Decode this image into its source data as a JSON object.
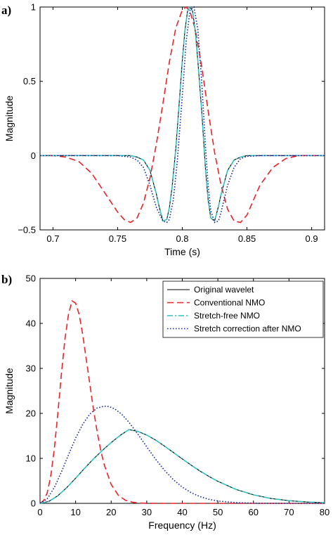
{
  "chart_data": [
    {
      "panel_label": "a)",
      "type": "line",
      "xlabel": "Time (s)",
      "ylabel": "Magnitude",
      "xlim": [
        0.69,
        0.91
      ],
      "ylim": [
        -0.5,
        1
      ],
      "xticks": [
        0.7,
        0.75,
        0.8,
        0.85,
        0.9
      ],
      "xtick_labels": [
        "0.7",
        "0.75",
        "0.8",
        "0.85",
        "0.9"
      ],
      "yticks": [
        -0.5,
        0,
        0.5,
        1
      ],
      "ytick_labels": [
        "−0.5",
        "0",
        "0.5",
        "1"
      ],
      "grid": false,
      "series": [
        {
          "name": "Original wavelet",
          "color": "#000000",
          "dash": "solid",
          "x": [
            0.69,
            0.7,
            0.71,
            0.72,
            0.73,
            0.74,
            0.75,
            0.76,
            0.765,
            0.77,
            0.775,
            0.78,
            0.782,
            0.785,
            0.788,
            0.79,
            0.792,
            0.795,
            0.798,
            0.8,
            0.802,
            0.804,
            0.806,
            0.808,
            0.81,
            0.812,
            0.815,
            0.818,
            0.82,
            0.822,
            0.825,
            0.828,
            0.83,
            0.835,
            0.84,
            0.845,
            0.85,
            0.86,
            0.87,
            0.88,
            0.89,
            0.9,
            0.91
          ],
          "y": [
            0,
            0,
            0,
            0,
            0,
            0,
            0,
            0,
            -0.01,
            -0.03,
            -0.1,
            -0.26,
            -0.34,
            -0.44,
            -0.43,
            -0.35,
            -0.22,
            0.05,
            0.4,
            0.64,
            0.84,
            0.97,
            1.0,
            0.97,
            0.84,
            0.64,
            0.3,
            -0.1,
            -0.3,
            -0.42,
            -0.44,
            -0.34,
            -0.26,
            -0.1,
            -0.03,
            -0.01,
            0,
            0,
            0,
            0,
            0,
            0,
            0
          ]
        },
        {
          "name": "Conventional NMO",
          "color": "#e8232b",
          "dash": "dashed",
          "x": [
            0.69,
            0.7,
            0.71,
            0.72,
            0.73,
            0.74,
            0.75,
            0.755,
            0.76,
            0.765,
            0.77,
            0.775,
            0.78,
            0.785,
            0.79,
            0.795,
            0.8,
            0.803,
            0.806,
            0.81,
            0.815,
            0.82,
            0.825,
            0.83,
            0.835,
            0.84,
            0.845,
            0.85,
            0.855,
            0.86,
            0.87,
            0.88,
            0.89,
            0.9,
            0.91
          ],
          "y": [
            0,
            0,
            -0.01,
            -0.04,
            -0.12,
            -0.25,
            -0.38,
            -0.43,
            -0.45,
            -0.42,
            -0.32,
            -0.15,
            0.08,
            0.35,
            0.63,
            0.86,
            0.98,
            1.0,
            0.97,
            0.85,
            0.6,
            0.3,
            0.02,
            -0.2,
            -0.36,
            -0.44,
            -0.45,
            -0.4,
            -0.3,
            -0.2,
            -0.08,
            -0.02,
            0,
            0,
            0
          ]
        },
        {
          "name": "Stretch-free NMO",
          "color": "#2ec4c4",
          "dash": "dashdot",
          "x": [
            0.69,
            0.7,
            0.71,
            0.72,
            0.73,
            0.74,
            0.75,
            0.76,
            0.765,
            0.77,
            0.775,
            0.78,
            0.782,
            0.785,
            0.788,
            0.79,
            0.792,
            0.795,
            0.798,
            0.8,
            0.802,
            0.804,
            0.806,
            0.808,
            0.81,
            0.812,
            0.815,
            0.818,
            0.82,
            0.822,
            0.825,
            0.828,
            0.83,
            0.835,
            0.84,
            0.845,
            0.85,
            0.86,
            0.87,
            0.88,
            0.89,
            0.9,
            0.91
          ],
          "y": [
            0,
            0,
            0,
            0,
            0,
            0,
            0,
            0,
            -0.01,
            -0.03,
            -0.1,
            -0.26,
            -0.34,
            -0.44,
            -0.43,
            -0.35,
            -0.22,
            0.05,
            0.4,
            0.64,
            0.84,
            0.97,
            1.0,
            0.97,
            0.84,
            0.64,
            0.3,
            -0.1,
            -0.3,
            -0.42,
            -0.44,
            -0.34,
            -0.26,
            -0.1,
            -0.03,
            -0.01,
            0,
            0,
            0,
            0,
            0,
            0,
            0
          ]
        },
        {
          "name": "Stretch correction after NMO",
          "color": "#1f2a9c",
          "dash": "dotted",
          "x": [
            0.69,
            0.7,
            0.71,
            0.72,
            0.73,
            0.74,
            0.75,
            0.76,
            0.765,
            0.77,
            0.775,
            0.78,
            0.785,
            0.788,
            0.79,
            0.793,
            0.796,
            0.8,
            0.803,
            0.806,
            0.809,
            0.812,
            0.815,
            0.818,
            0.82,
            0.822,
            0.825,
            0.828,
            0.83,
            0.835,
            0.84,
            0.845,
            0.85,
            0.86,
            0.87,
            0.88,
            0.89,
            0.9,
            0.91
          ],
          "y": [
            0,
            0,
            0,
            0,
            0,
            0,
            0,
            -0.01,
            -0.03,
            -0.08,
            -0.2,
            -0.35,
            -0.44,
            -0.45,
            -0.43,
            -0.3,
            -0.05,
            0.4,
            0.77,
            0.98,
            1.0,
            0.85,
            0.5,
            0.05,
            -0.2,
            -0.37,
            -0.45,
            -0.44,
            -0.38,
            -0.2,
            -0.08,
            -0.02,
            -0.005,
            0,
            0,
            0,
            0,
            0,
            0
          ]
        }
      ]
    },
    {
      "panel_label": "b)",
      "type": "line",
      "xlabel": "Frequency (Hz)",
      "ylabel": "Magnitude",
      "xlim": [
        0,
        80
      ],
      "ylim": [
        0,
        50
      ],
      "xticks": [
        0,
        10,
        20,
        30,
        40,
        50,
        60,
        70,
        80
      ],
      "xtick_labels": [
        "0",
        "10",
        "20",
        "30",
        "40",
        "50",
        "60",
        "70",
        "80"
      ],
      "yticks": [
        0,
        10,
        20,
        30,
        40,
        50
      ],
      "ytick_labels": [
        "0",
        "10",
        "20",
        "30",
        "40",
        "50"
      ],
      "grid": false,
      "legend_position": "top-right",
      "series": [
        {
          "name": "Original wavelet",
          "color": "#000000",
          "dash": "solid",
          "x": [
            0,
            2.5,
            5,
            7.5,
            10,
            12.5,
            15,
            17.5,
            20,
            22.5,
            25,
            27.5,
            30,
            32.5,
            35,
            37.5,
            40,
            42.5,
            45,
            47.5,
            50,
            55,
            60,
            65,
            70,
            75,
            80
          ],
          "y": [
            0,
            0.45,
            1.69,
            3.49,
            5.59,
            7.78,
            9.86,
            11.76,
            13.5,
            15.1,
            16.4,
            16.0,
            15.18,
            14.05,
            12.72,
            11.31,
            9.87,
            8.48,
            7.17,
            5.98,
            4.9,
            3.13,
            1.89,
            1.08,
            0.59,
            0.31,
            0.15
          ]
        },
        {
          "name": "Conventional NMO",
          "color": "#e8232b",
          "dash": "dashed",
          "x": [
            0,
            1,
            2,
            3,
            4,
            5,
            6,
            7,
            8,
            9,
            10,
            11,
            12,
            13,
            14,
            15,
            16,
            17,
            18,
            20,
            22,
            24,
            26,
            28,
            30,
            35,
            40,
            80
          ],
          "y": [
            0,
            0.6,
            2.3,
            6,
            12,
            20,
            28.7,
            36.5,
            42,
            45,
            44.5,
            42,
            37.5,
            32,
            26.5,
            21,
            16.2,
            12,
            8.7,
            4.2,
            1.8,
            0.7,
            0.25,
            0.08,
            0.02,
            0,
            0,
            0
          ]
        },
        {
          "name": "Stretch-free NMO",
          "color": "#2ec4c4",
          "dash": "dashdot",
          "x": [
            0,
            2.5,
            5,
            7.5,
            10,
            12.5,
            15,
            17.5,
            20,
            22.5,
            25,
            27.5,
            30,
            32.5,
            35,
            37.5,
            40,
            42.5,
            45,
            47.5,
            50,
            55,
            60,
            65,
            70,
            75,
            80
          ],
          "y": [
            0,
            0.45,
            1.69,
            3.49,
            5.59,
            7.78,
            9.86,
            11.76,
            13.5,
            15.1,
            16.4,
            16.0,
            15.18,
            14.05,
            12.72,
            11.31,
            9.87,
            8.48,
            7.17,
            5.98,
            4.9,
            3.13,
            1.89,
            1.08,
            0.59,
            0.31,
            0.15
          ]
        },
        {
          "name": "Stretch correction after NMO",
          "color": "#1f2a9c",
          "dash": "dotted",
          "x": [
            0,
            2,
            4,
            6,
            8,
            10,
            12,
            14,
            16,
            18,
            19.5,
            21,
            23,
            25,
            27.5,
            30,
            32.5,
            35,
            37.5,
            40,
            42.5,
            45,
            47.5,
            50,
            55,
            60,
            65,
            70,
            80
          ],
          "y": [
            0,
            0.98,
            3.51,
            6.96,
            10.8,
            14.48,
            17.58,
            19.85,
            21.18,
            21.6,
            21.5,
            21.0,
            19.79,
            18.02,
            15.4,
            12.57,
            9.81,
            7.34,
            5.26,
            3.6,
            2.37,
            1.49,
            0.9,
            0.52,
            0.16,
            0.04,
            0.01,
            0,
            0
          ]
        }
      ]
    }
  ]
}
